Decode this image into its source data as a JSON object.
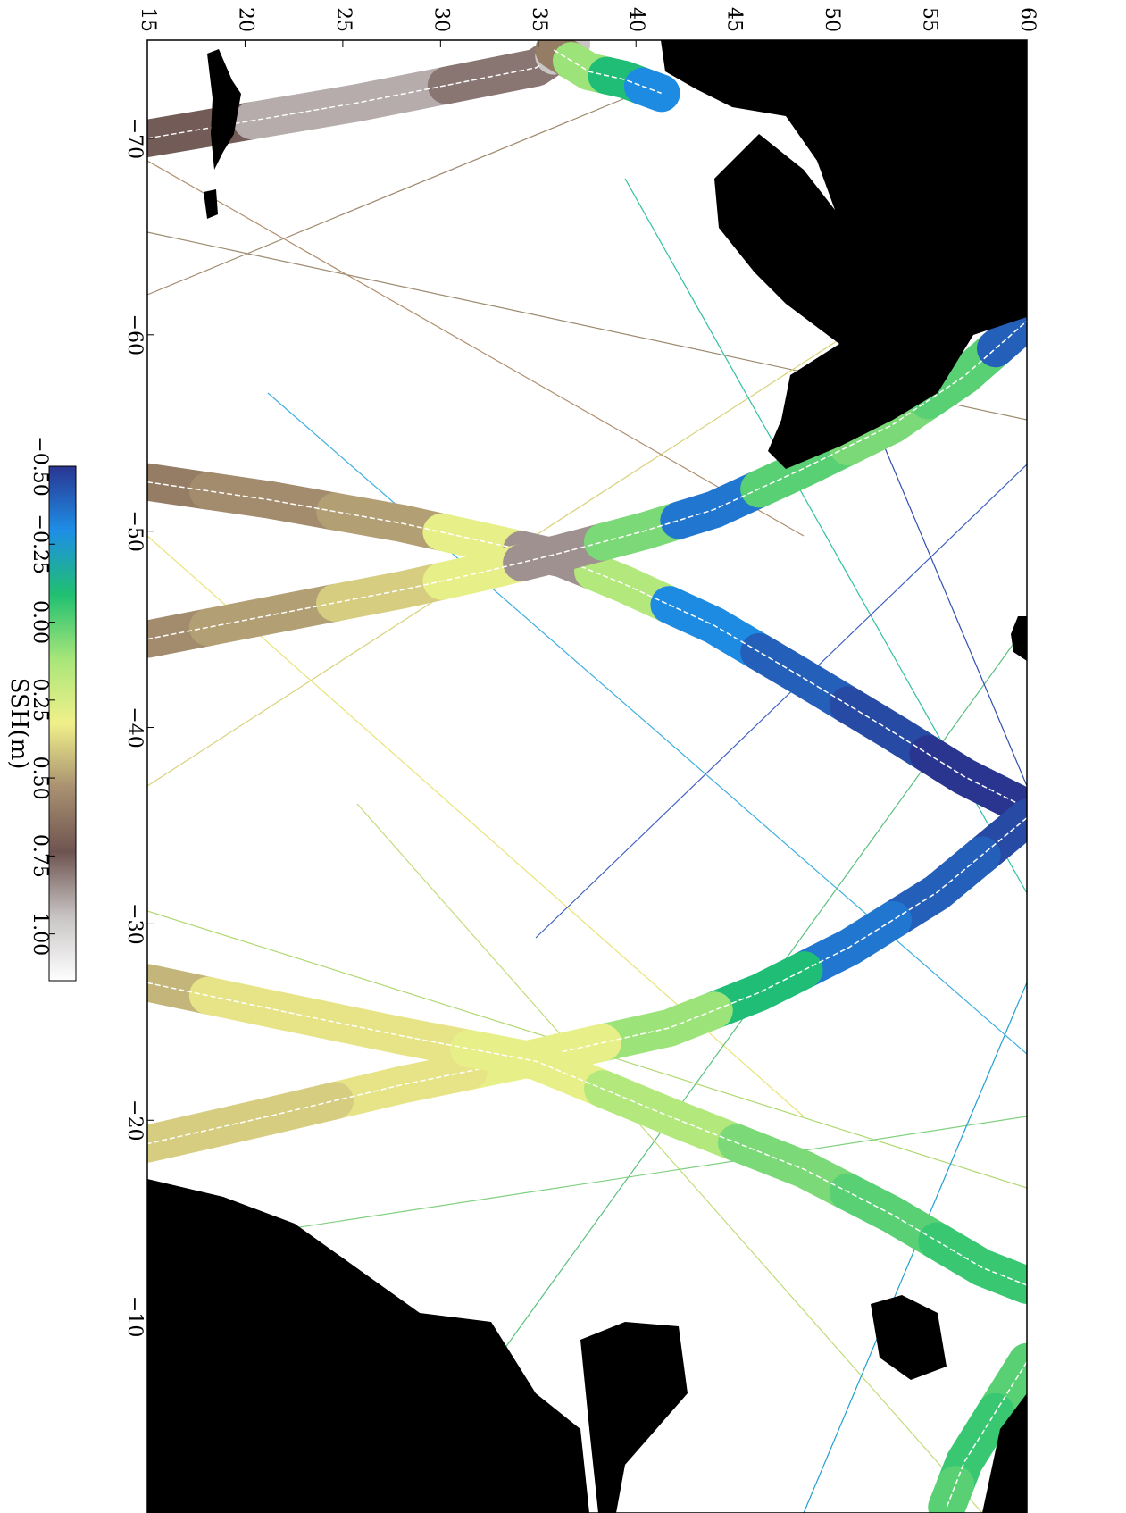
{
  "chart_data": {
    "type": "map",
    "xlim": [
      -75,
      0
    ],
    "xticks": [
      {
        "value": -70,
        "label": "−70"
      },
      {
        "value": -60,
        "label": "−60"
      },
      {
        "value": -50,
        "label": "−50"
      },
      {
        "value": -40,
        "label": "−40"
      },
      {
        "value": -30,
        "label": "−30"
      },
      {
        "value": -20,
        "label": "−20"
      },
      {
        "value": -10,
        "label": "−10"
      }
    ],
    "ylim": [
      15,
      60
    ],
    "yticks": [
      15,
      20,
      25,
      30,
      35,
      40,
      45,
      50,
      55,
      60
    ],
    "colorbar": {
      "label": "SSH(m)",
      "clim": [
        -0.5,
        1.15
      ],
      "colormap": [
        "#2a3590",
        "#1e8ee6",
        "#20c070",
        "#a8e67a",
        "#f0f08a",
        "#a89070",
        "#6e5450",
        "#c8c4c4",
        "#ffffff"
      ],
      "ticks": [
        {
          "value": -0.5,
          "label": "−0.50"
        },
        {
          "value": -0.25,
          "label": "−0.25"
        },
        {
          "value": 0,
          "label": "0.00"
        },
        {
          "value": 0.25,
          "label": "0.25"
        },
        {
          "value": 0.5,
          "label": "0.50"
        },
        {
          "value": 0.75,
          "label": "0.75"
        },
        {
          "value": 1,
          "label": "1.00"
        }
      ]
    },
    "swaths": [
      {
        "lat": [
          15,
          25.7,
          34.9,
          36.7
        ],
        "lon": [
          -70,
          -71.8,
          -73.6,
          -74.8
        ],
        "values": [
          0.75,
          0.9,
          0.8,
          0.95
        ]
      },
      {
        "lat": [
          35.8,
          37.6,
          39.4,
          41.3
        ],
        "lon": [
          -74.5,
          -73.4,
          -73,
          -72.3
        ],
        "values": [
          0.6,
          0.1,
          -0.1,
          -0.3
        ]
      },
      {
        "lat": [
          15,
          21.2,
          28,
          32.1,
          36.2,
          39.4,
          44,
          48.6,
          53.1,
          56.8,
          60
        ],
        "lon": [
          -52.5,
          -51.6,
          -50.4,
          -49.5,
          -48.6,
          -47.3,
          -45.2,
          -42.5,
          -39.8,
          -37.5,
          -35.9
        ],
        "values": [
          0.6,
          0.55,
          0.5,
          0.3,
          0.85,
          0.15,
          -0.3,
          -0.4,
          -0.45,
          -0.5,
          -0.5
        ]
      },
      {
        "lat": [
          15,
          21.2,
          28,
          32.1,
          36.2,
          40.4,
          44,
          48.6,
          53.1,
          56.8,
          60
        ],
        "lon": [
          -44.5,
          -45.7,
          -47,
          -47.9,
          -48.9,
          -50,
          -51.1,
          -53.2,
          -55.4,
          -57.9,
          -60.7
        ],
        "values": [
          0.55,
          0.5,
          0.4,
          0.3,
          0.85,
          0.05,
          -0.35,
          0,
          0.05,
          0,
          -0.4
        ]
      },
      {
        "lat": [
          60,
          55.4,
          50.9,
          46.3,
          41.7,
          34.9,
          28,
          21.2,
          15
        ],
        "lon": [
          -35.4,
          -31.6,
          -28.8,
          -26.5,
          -24.7,
          -23.2,
          -21.8,
          -20.2,
          -18.8
        ],
        "values": [
          -0.45,
          -0.4,
          -0.35,
          -0.1,
          0.1,
          0.3,
          0.35,
          0.4,
          0.4
        ]
      },
      {
        "lat": [
          15,
          21.2,
          28,
          34.9,
          41.7,
          48.6,
          53.1,
          57.7,
          60
        ],
        "lon": [
          -27,
          -25.7,
          -24.3,
          -23,
          -20.2,
          -17.5,
          -15.2,
          -12.5,
          -11.6
        ],
        "values": [
          0.45,
          0.35,
          0.35,
          0.3,
          0.15,
          0.05,
          0,
          -0.05,
          -0.05
        ]
      },
      {
        "lat": [
          60,
          56.8,
          55.9
        ],
        "lon": [
          -7.7,
          -2.6,
          -0.3
        ],
        "values": [
          0,
          -0.05,
          0
        ]
      }
    ]
  }
}
